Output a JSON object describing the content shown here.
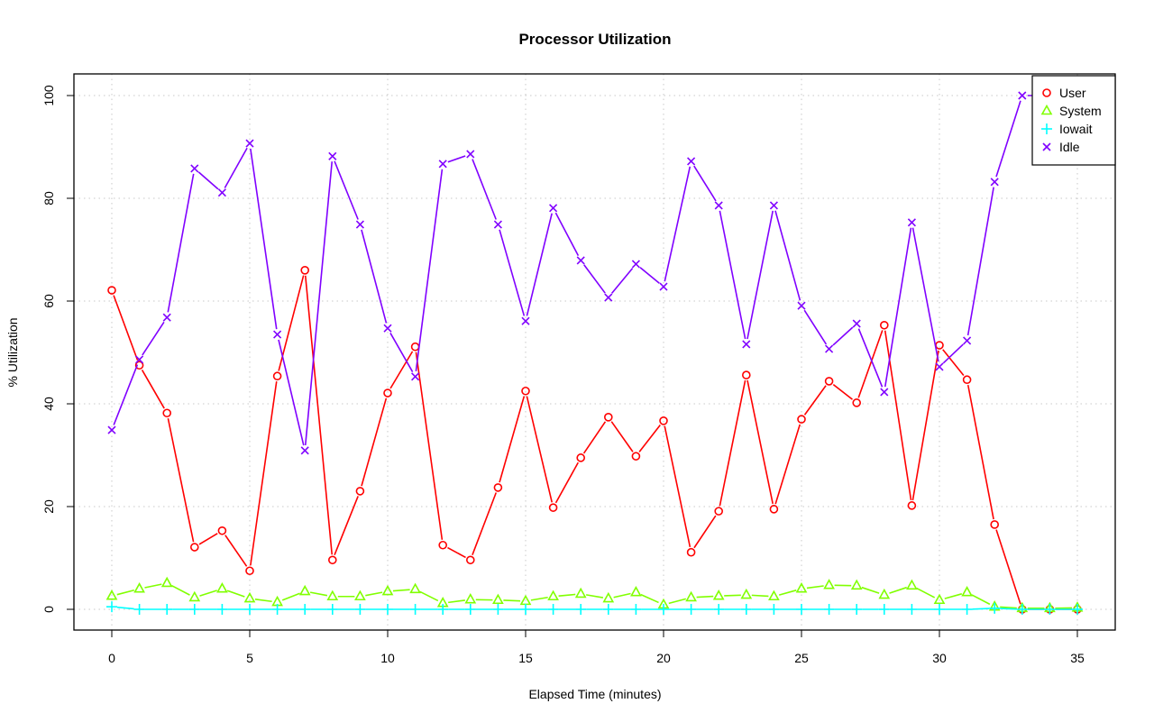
{
  "chart_data": {
    "type": "line",
    "title": "Processor Utilization",
    "xlabel": "Elapsed Time (minutes)",
    "ylabel": "% Utilization",
    "xlim": [
      -1.4,
      36.4
    ],
    "ylim": [
      -4,
      104
    ],
    "xticks": [
      0,
      5,
      10,
      15,
      20,
      25,
      30,
      35
    ],
    "yticks": [
      0,
      20,
      40,
      60,
      80,
      100
    ],
    "grid": true,
    "legend_position": "top-right",
    "x": [
      0,
      1,
      2,
      3,
      4,
      5,
      6,
      7,
      8,
      9,
      10,
      11,
      12,
      13,
      14,
      15,
      16,
      17,
      18,
      19,
      20,
      21,
      22,
      23,
      24,
      25,
      26,
      27,
      28,
      29,
      30,
      31,
      32,
      33,
      34,
      35
    ],
    "series": [
      {
        "name": "User",
        "color": "#ff0000",
        "marker": "circle",
        "values": [
          62.1,
          47.5,
          38.2,
          12.1,
          15.3,
          7.5,
          45.4,
          66.0,
          9.6,
          23.0,
          42.1,
          51.1,
          12.5,
          9.6,
          23.7,
          42.5,
          19.8,
          29.5,
          37.4,
          29.8,
          36.7,
          11.1,
          19.1,
          45.6,
          19.5,
          37.0,
          44.4,
          40.2,
          55.3,
          20.2,
          51.4,
          44.7,
          16.5,
          0,
          0,
          0
        ]
      },
      {
        "name": "System",
        "color": "#80ff00",
        "marker": "triangle",
        "values": [
          2.6,
          4.0,
          5.1,
          2.3,
          4.0,
          2.1,
          1.4,
          3.5,
          2.5,
          2.5,
          3.5,
          3.9,
          1.2,
          1.9,
          1.8,
          1.6,
          2.5,
          3.0,
          2.1,
          3.3,
          0.9,
          2.3,
          2.6,
          2.8,
          2.5,
          4.0,
          4.7,
          4.6,
          2.8,
          4.6,
          1.8,
          3.3,
          0.5,
          0.2,
          0.2,
          0.3
        ]
      },
      {
        "name": "Iowait",
        "color": "#00ffff",
        "marker": "plus",
        "values": [
          0.5,
          0,
          0,
          0,
          0,
          0,
          0,
          0,
          0,
          0,
          0,
          0,
          0,
          0,
          0,
          0,
          0,
          0,
          0,
          0,
          0,
          0,
          0,
          0,
          0,
          0,
          0,
          0,
          0,
          0,
          0,
          0,
          0.2,
          0,
          0,
          0
        ]
      },
      {
        "name": "Idle",
        "color": "#8000ff",
        "marker": "cross",
        "values": [
          34.9,
          48.6,
          56.8,
          85.8,
          81.1,
          90.7,
          53.5,
          30.9,
          88.2,
          74.9,
          54.7,
          45.3,
          86.7,
          88.6,
          74.9,
          56.1,
          78.1,
          67.9,
          60.7,
          67.2,
          62.8,
          87.2,
          78.6,
          51.6,
          78.6,
          59.1,
          50.7,
          55.6,
          42.3,
          75.3,
          47.2,
          52.3,
          83.2,
          100,
          100,
          99.6
        ]
      }
    ]
  }
}
